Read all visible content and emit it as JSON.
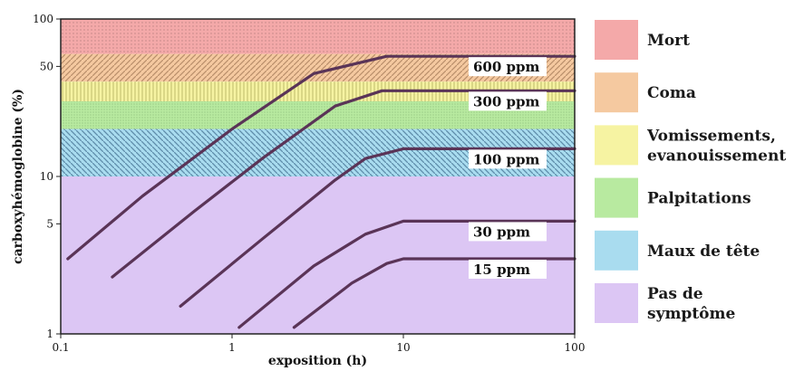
{
  "chart_data": {
    "type": "line",
    "xlabel": "exposition (h)",
    "ylabel": "carboxyhémoglobine (%)",
    "xscale": "log",
    "yscale": "log",
    "xlim": [
      0.1,
      100
    ],
    "ylim": [
      1,
      100
    ],
    "x_ticks": [
      {
        "value": 0.1,
        "label": "0.1"
      },
      {
        "value": 1,
        "label": "1"
      },
      {
        "value": 10,
        "label": "10"
      },
      {
        "value": 100,
        "label": "100"
      }
    ],
    "y_ticks": [
      {
        "value": 1,
        "label": "1"
      },
      {
        "value": 5,
        "label": "5"
      },
      {
        "value": 10,
        "label": "10"
      },
      {
        "value": 50,
        "label": "50"
      },
      {
        "value": 100,
        "label": "100"
      }
    ],
    "bands": [
      {
        "name": "Mort",
        "from": 60,
        "to": 100,
        "color": "#f4a9a9"
      },
      {
        "name": "Coma",
        "from": 40,
        "to": 60,
        "color": "#f5c9a0"
      },
      {
        "name": "Vomissements, evanouissement",
        "from": 30,
        "to": 40,
        "color": "#f6f3a2"
      },
      {
        "name": "Palpitations",
        "from": 20,
        "to": 30,
        "color": "#b8eaa0"
      },
      {
        "name": "Maux de tête",
        "from": 10,
        "to": 20,
        "color": "#a9dcef"
      },
      {
        "name": "Pas de symptôme",
        "from": 1,
        "to": 10,
        "color": "#dcc6f4"
      }
    ],
    "legend_position": "right",
    "series": [
      {
        "name": "600 ppm",
        "points": [
          [
            0.11,
            3.0
          ],
          [
            0.3,
            7.5
          ],
          [
            1.0,
            20
          ],
          [
            3.0,
            45
          ],
          [
            8.0,
            58
          ],
          [
            100,
            58
          ]
        ]
      },
      {
        "name": "300 ppm",
        "points": [
          [
            0.2,
            2.3
          ],
          [
            0.6,
            6.0
          ],
          [
            1.5,
            13
          ],
          [
            4.0,
            28
          ],
          [
            7.5,
            35
          ],
          [
            100,
            35
          ]
        ]
      },
      {
        "name": "100 ppm",
        "points": [
          [
            0.5,
            1.5
          ],
          [
            1.5,
            4.0
          ],
          [
            4.0,
            9.5
          ],
          [
            6.0,
            13
          ],
          [
            10,
            15
          ],
          [
            100,
            15
          ]
        ]
      },
      {
        "name": "30 ppm",
        "points": [
          [
            1.1,
            1.1
          ],
          [
            3.0,
            2.7
          ],
          [
            6.0,
            4.3
          ],
          [
            10,
            5.2
          ],
          [
            100,
            5.2
          ]
        ]
      },
      {
        "name": "15 ppm",
        "points": [
          [
            2.3,
            1.1
          ],
          [
            5.0,
            2.1
          ],
          [
            8.0,
            2.8
          ],
          [
            10,
            3.0
          ],
          [
            100,
            3.0
          ]
        ]
      }
    ],
    "series_color": "#5a3457"
  }
}
